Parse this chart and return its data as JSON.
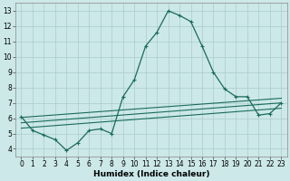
{
  "xlabel": "Humidex (Indice chaleur)",
  "bg_color": "#cce8e8",
  "grid_color": "#aacccc",
  "line_color": "#1a6b5a",
  "xlim": [
    -0.5,
    23.5
  ],
  "ylim": [
    3.5,
    13.5
  ],
  "xticks": [
    0,
    1,
    2,
    3,
    4,
    5,
    6,
    7,
    8,
    9,
    10,
    11,
    12,
    13,
    14,
    15,
    16,
    17,
    18,
    19,
    20,
    21,
    22,
    23
  ],
  "yticks": [
    4,
    5,
    6,
    7,
    8,
    9,
    10,
    11,
    12,
    13
  ],
  "main_x": [
    0,
    1,
    2,
    3,
    4,
    5,
    6,
    7,
    8,
    9,
    10,
    11,
    12,
    13,
    14,
    15,
    16,
    17,
    18,
    19,
    20,
    21,
    22,
    23
  ],
  "main_y": [
    6.1,
    5.2,
    4.9,
    4.6,
    3.9,
    4.4,
    5.2,
    5.3,
    5.0,
    7.4,
    8.5,
    10.7,
    11.6,
    13.0,
    12.7,
    12.3,
    10.7,
    9.0,
    7.9,
    7.4,
    7.4,
    6.2,
    6.3,
    7.0
  ],
  "line2_x": [
    0,
    23
  ],
  "line2_y": [
    6.05,
    7.3
  ],
  "line3_x": [
    0,
    23
  ],
  "line3_y": [
    5.7,
    7.0
  ],
  "line4_x": [
    0,
    23
  ],
  "line4_y": [
    5.35,
    6.65
  ],
  "tick_fontsize": 5.5,
  "label_fontsize": 6.5
}
